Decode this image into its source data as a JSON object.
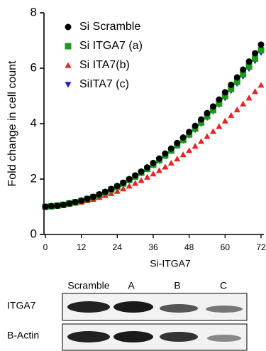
{
  "chart_data": {
    "type": "scatter",
    "xlabel": "Si-ITGA7",
    "ylabel": "Fold change in cell count",
    "x": [
      0,
      2,
      4,
      6,
      8,
      10,
      12,
      14,
      16,
      18,
      20,
      22,
      24,
      26,
      28,
      30,
      32,
      34,
      36,
      38,
      40,
      42,
      44,
      46,
      48,
      50,
      52,
      54,
      56,
      58,
      60,
      62,
      64,
      66,
      68,
      70,
      72
    ],
    "xlim": [
      0,
      72
    ],
    "xticks": [
      0,
      12,
      24,
      36,
      48,
      60,
      72
    ],
    "ylim": [
      0,
      8
    ],
    "yticks": [
      0,
      2,
      4,
      6,
      8
    ],
    "series": [
      {
        "name": "Si Scramble",
        "color": "#000000",
        "marker": "circle",
        "values": [
          1.0,
          1.02,
          1.04,
          1.07,
          1.12,
          1.17,
          1.22,
          1.29,
          1.36,
          1.45,
          1.54,
          1.64,
          1.75,
          1.87,
          2.0,
          2.13,
          2.27,
          2.42,
          2.58,
          2.74,
          2.92,
          3.1,
          3.3,
          3.5,
          3.7,
          3.92,
          4.15,
          4.38,
          4.62,
          4.87,
          5.13,
          5.4,
          5.67,
          5.95,
          6.24,
          6.54,
          6.85
        ]
      },
      {
        "name": "Si ITGA7 (a)",
        "color": "#1a9a1a",
        "marker": "square",
        "values": [
          1.0,
          1.02,
          1.04,
          1.07,
          1.12,
          1.16,
          1.21,
          1.28,
          1.35,
          1.43,
          1.52,
          1.62,
          1.72,
          1.84,
          1.97,
          2.09,
          2.23,
          2.37,
          2.52,
          2.68,
          2.85,
          3.03,
          3.22,
          3.41,
          3.61,
          3.82,
          4.04,
          4.26,
          4.49,
          4.73,
          4.99,
          5.25,
          5.51,
          5.78,
          6.06,
          6.35,
          6.65
        ]
      },
      {
        "name": "Si ITA7(b)",
        "color": "#ee2020",
        "marker": "triangle",
        "values": [
          1.0,
          1.02,
          1.03,
          1.05,
          1.09,
          1.13,
          1.17,
          1.22,
          1.27,
          1.34,
          1.41,
          1.48,
          1.56,
          1.65,
          1.75,
          1.85,
          1.95,
          2.07,
          2.19,
          2.31,
          2.44,
          2.58,
          2.73,
          2.88,
          3.03,
          3.19,
          3.36,
          3.54,
          3.72,
          3.9,
          4.1,
          4.3,
          4.5,
          4.71,
          4.93,
          5.16,
          5.39
        ]
      },
      {
        "name": "SiITA7 (c)",
        "color": "#1a1acc",
        "marker": "triangle-down",
        "values": [
          1.0,
          1.02,
          1.04,
          1.07,
          1.11,
          1.16,
          1.21,
          1.28,
          1.34,
          1.43,
          1.51,
          1.61,
          1.71,
          1.83,
          1.95,
          2.07,
          2.21,
          2.35,
          2.5,
          2.65,
          2.82,
          3.0,
          3.19,
          3.38,
          3.57,
          3.77,
          3.99,
          4.21,
          4.44,
          4.68,
          4.92,
          5.18,
          5.44,
          5.7,
          5.98,
          6.26,
          6.56
        ]
      }
    ]
  },
  "blot": {
    "lanes": [
      "Scramble",
      "A",
      "B",
      "C"
    ],
    "rows": [
      "ITGA7",
      "B-Actin"
    ]
  }
}
